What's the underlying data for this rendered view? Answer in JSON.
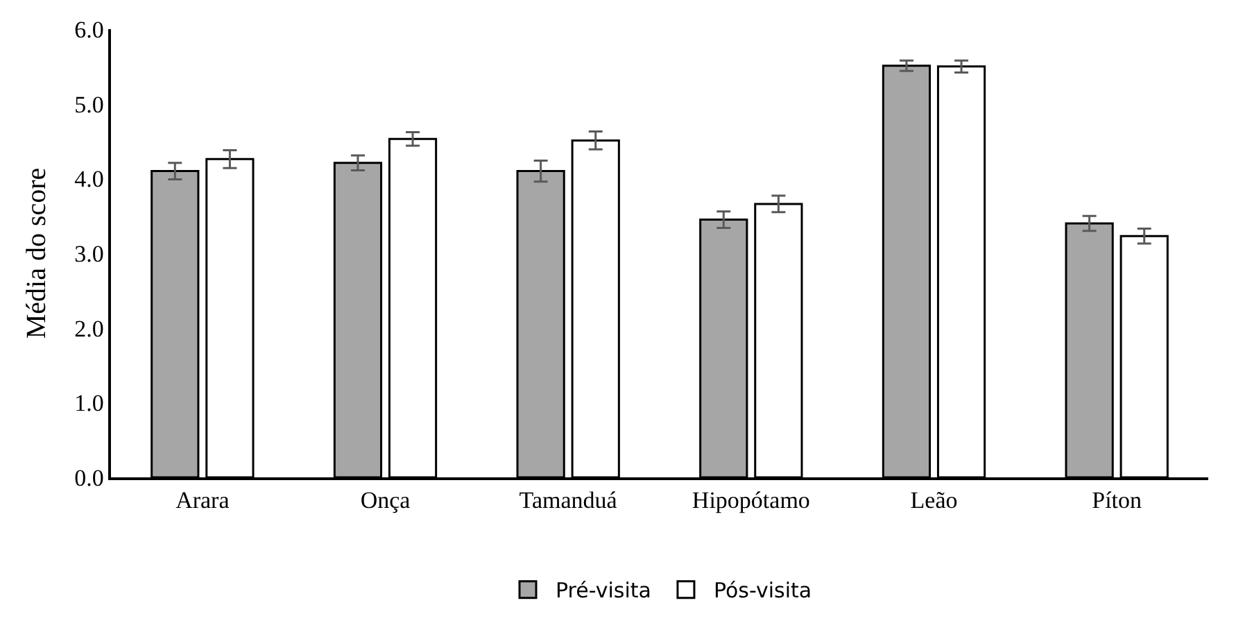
{
  "chart_data": {
    "type": "bar",
    "ylabel": "Média do score",
    "categories": [
      "Arara",
      "Onça",
      "Tamanduá",
      "Hipopótamo",
      "Leão",
      "Píton"
    ],
    "series": [
      {
        "name": "Pré-visita",
        "color": "#a6a6a6",
        "values": [
          4.1,
          4.21,
          4.1,
          3.45,
          5.51,
          3.4
        ],
        "errors": [
          0.11,
          0.1,
          0.14,
          0.11,
          0.07,
          0.1
        ]
      },
      {
        "name": "Pós-visita",
        "color": "#ffffff",
        "values": [
          4.26,
          4.53,
          4.51,
          3.66,
          5.5,
          3.23
        ],
        "errors": [
          0.12,
          0.09,
          0.12,
          0.11,
          0.08,
          0.1
        ]
      }
    ],
    "ylim": [
      0,
      6
    ],
    "yticks": [
      {
        "value": 0,
        "label": "0.0"
      },
      {
        "value": 1,
        "label": "1.0"
      },
      {
        "value": 2,
        "label": "2.0"
      },
      {
        "value": 3,
        "label": "3.0"
      },
      {
        "value": 4,
        "label": "4.0"
      },
      {
        "value": 5,
        "label": "5.0"
      },
      {
        "value": 6,
        "label": "6.0"
      }
    ],
    "legend": "bottom"
  }
}
